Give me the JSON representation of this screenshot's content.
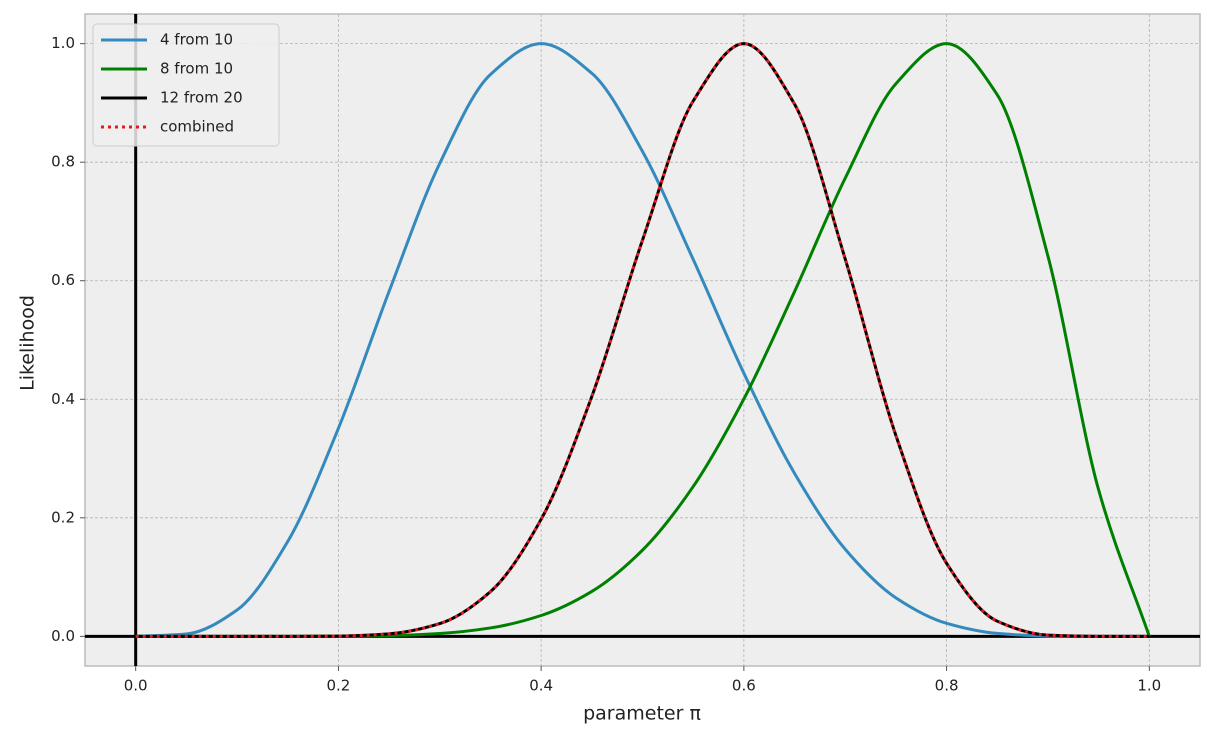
{
  "chart_data": {
    "type": "line",
    "x_label": "parameter π",
    "y_label": "Likelihood",
    "x": [
      0,
      0.05,
      0.1,
      0.15,
      0.2,
      0.25,
      0.3,
      0.35,
      0.4,
      0.45,
      0.5,
      0.55,
      0.6,
      0.65,
      0.7,
      0.75,
      0.8,
      0.85,
      0.9,
      0.95,
      1.0
    ],
    "series": [
      {
        "name": "4 from 10",
        "color": "#348abd",
        "style": "solid",
        "values": [
          0,
          0.004,
          0.0445,
          0.16,
          0.351,
          0.582,
          0.798,
          0.948,
          1.0,
          0.95,
          0.818,
          0.636,
          0.444,
          0.275,
          0.147,
          0.065,
          0.022,
          0.005,
          0.0005,
          0,
          0
        ]
      },
      {
        "name": "8 from 10",
        "color": "#008000",
        "style": "solid",
        "values": [
          0,
          0,
          0,
          0,
          0.0002,
          0.0013,
          0.0048,
          0.0142,
          0.0352,
          0.0758,
          0.1455,
          0.2527,
          0.4005,
          0.5816,
          0.7731,
          0.9324,
          1.0,
          0.9136,
          0.6414,
          0.2471,
          0
        ]
      },
      {
        "name": "12 from 20",
        "color": "#000000",
        "style": "solid",
        "values": [
          0,
          0,
          0,
          0,
          0.0005,
          0.0042,
          0.0215,
          0.0755,
          0.1975,
          0.4047,
          0.6685,
          0.9032,
          1.0,
          0.8979,
          0.6366,
          0.3388,
          0.1233,
          0.0256,
          0.002,
          0,
          0
        ]
      },
      {
        "name": "combined",
        "color": "#e41a1c",
        "style": "dotted",
        "values": [
          0,
          0,
          0,
          0,
          0.0005,
          0.0042,
          0.0215,
          0.0755,
          0.1975,
          0.4047,
          0.6685,
          0.9032,
          1.0,
          0.8979,
          0.6366,
          0.3388,
          0.1233,
          0.0256,
          0.002,
          0,
          0
        ]
      }
    ],
    "xlim": [
      -0.05,
      1.05
    ],
    "ylim": [
      -0.05,
      1.05
    ],
    "xticks": [
      {
        "value": 0,
        "label": "0.0"
      },
      0.2,
      0.4,
      0.6,
      0.8,
      {
        "value": 1,
        "label": "1.0"
      }
    ],
    "yticks": [
      {
        "value": 0,
        "label": "0.0"
      },
      0.2,
      0.4,
      0.6,
      0.8,
      {
        "value": 1,
        "label": "1.0"
      }
    ],
    "grid": true,
    "legend": "upper-left"
  }
}
